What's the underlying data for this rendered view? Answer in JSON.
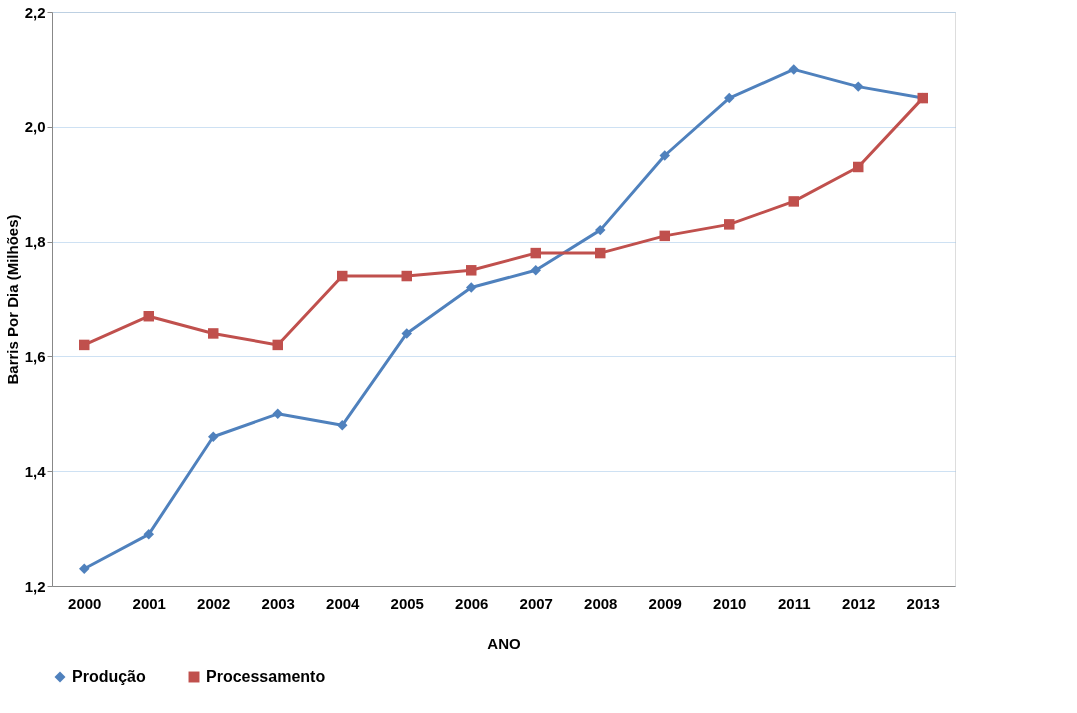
{
  "chart_data": {
    "type": "line",
    "xlabel": "ANO",
    "ylabel": "Barris Por Dia (Milhões)",
    "categories": [
      "2000",
      "2001",
      "2002",
      "2003",
      "2004",
      "2005",
      "2006",
      "2007",
      "2008",
      "2009",
      "2010",
      "2011",
      "2012",
      "2013"
    ],
    "series": [
      {
        "name": "Produção",
        "color": "#4f81bd",
        "marker": "diamond",
        "values": [
          1.23,
          1.29,
          1.46,
          1.5,
          1.48,
          1.64,
          1.72,
          1.75,
          1.82,
          1.95,
          2.05,
          2.1,
          2.07,
          2.05
        ]
      },
      {
        "name": "Processamento",
        "color": "#c0504d",
        "marker": "square",
        "values": [
          1.62,
          1.67,
          1.64,
          1.62,
          1.74,
          1.74,
          1.75,
          1.78,
          1.78,
          1.81,
          1.83,
          1.87,
          1.93,
          2.05
        ]
      }
    ],
    "ylim": [
      1.2,
      2.2
    ],
    "yticks": [
      {
        "value": 1.2,
        "label": "1,2"
      },
      {
        "value": 1.4,
        "label": "1,4"
      },
      {
        "value": 1.6,
        "label": "1,6"
      },
      {
        "value": 1.8,
        "label": "1,8"
      },
      {
        "value": 2.0,
        "label": "2,0"
      },
      {
        "value": 2.2,
        "label": "2,2"
      }
    ],
    "grid": "y",
    "legend": "bottom",
    "line_style": "solid"
  }
}
